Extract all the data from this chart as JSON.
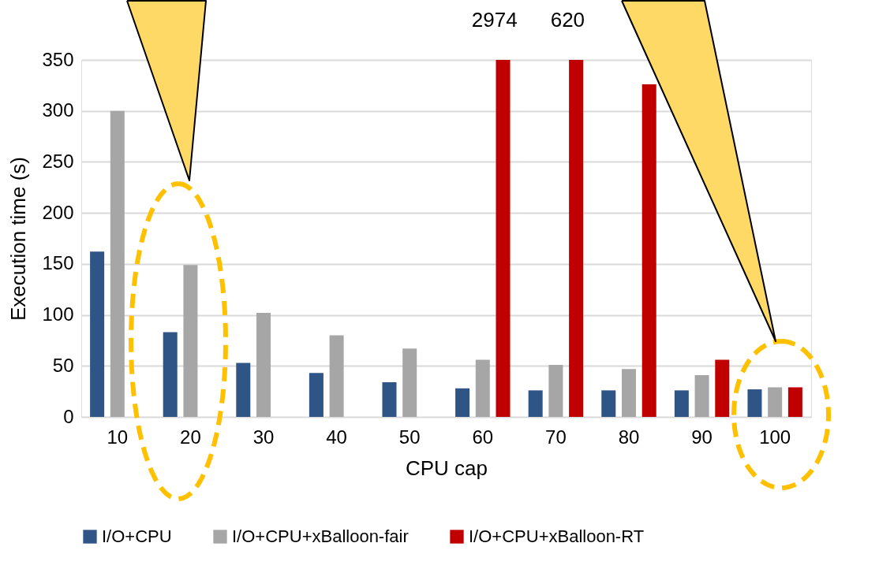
{
  "chart_data": {
    "type": "bar",
    "xlabel": "CPU cap",
    "ylabel": "Execution time (s)",
    "categories": [
      "10",
      "20",
      "30",
      "40",
      "50",
      "60",
      "70",
      "80",
      "90",
      "100"
    ],
    "series": [
      {
        "name": "I/O+CPU",
        "color": "#2f5486",
        "values": [
          162,
          83,
          53,
          43,
          34,
          28,
          26,
          26,
          26,
          27
        ]
      },
      {
        "name": "I/O+CPU+xBalloon-fair",
        "color": "#a6a6a6",
        "values": [
          300,
          149,
          102,
          80,
          67,
          56,
          51,
          47,
          41,
          29
        ]
      },
      {
        "name": "I/O+CPU+xBalloon-RT",
        "color": "#c00000",
        "values": [
          null,
          null,
          null,
          null,
          null,
          350,
          350,
          326,
          56,
          29
        ]
      }
    ],
    "ylim": [
      0,
      350
    ],
    "yticks": [
      0,
      50,
      100,
      150,
      200,
      250,
      300,
      350
    ],
    "grid": "y",
    "legend": "bottom",
    "annotations": [
      "2974",
      "620"
    ]
  }
}
